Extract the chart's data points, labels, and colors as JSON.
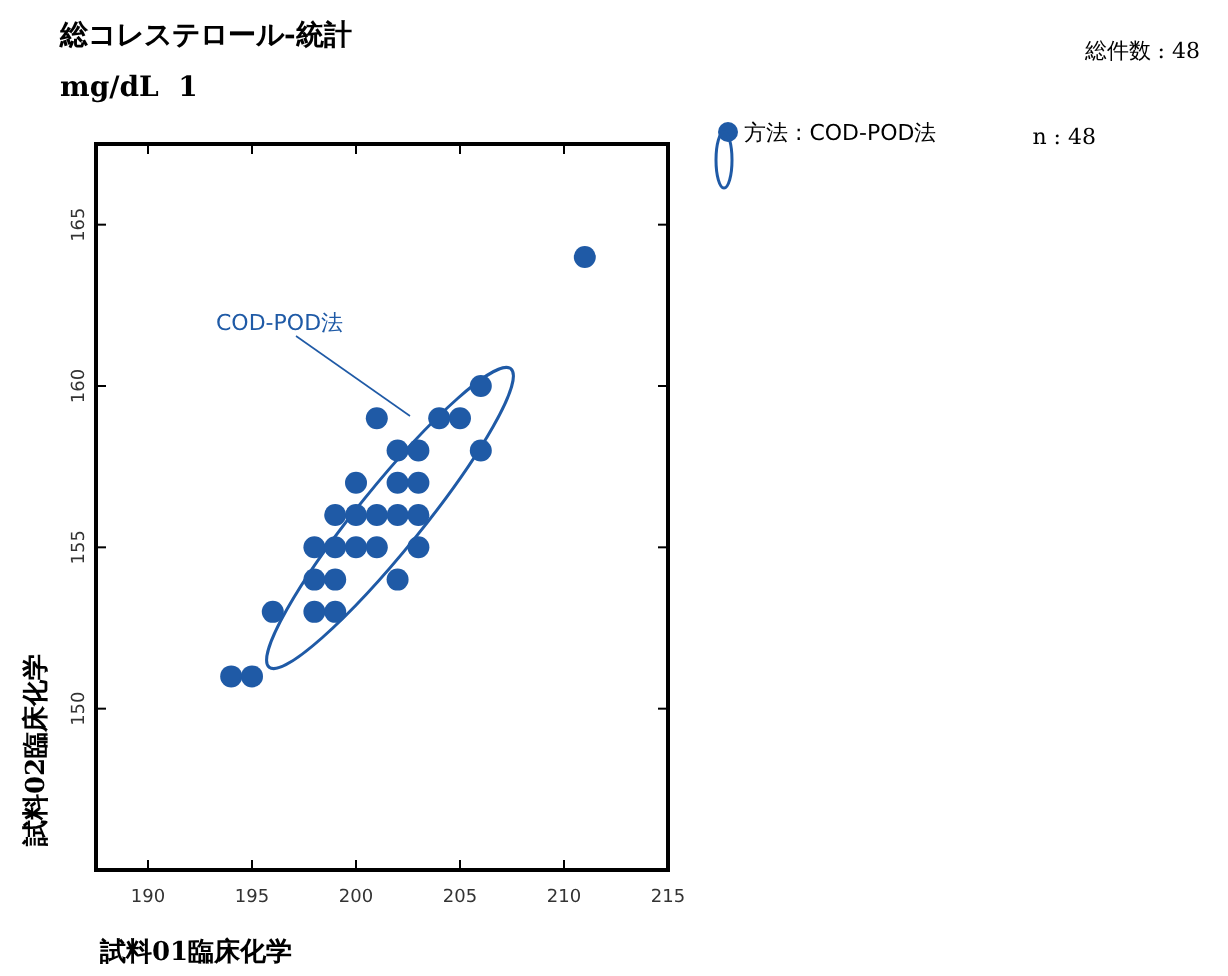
{
  "chart_data": {
    "type": "scatter",
    "title": "総コレステロール-統計",
    "subtitle": "mg/dL  1",
    "xlabel": "試料01臨床化学",
    "ylabel": "試料02臨床化学",
    "annotations": [
      "総件数 : 48",
      "n : 48",
      "COD-POD法"
    ],
    "xlim": [
      187.5,
      215
    ],
    "xticks": [
      190,
      195,
      200,
      205,
      210,
      215
    ],
    "ylim": [
      145,
      167.5
    ],
    "yticks": [
      150,
      155,
      160,
      165
    ],
    "grid": false,
    "legend": "top right",
    "marker": "circle",
    "series": [
      {
        "name": "方法 : COD-POD法",
        "color": "#1f5aa6",
        "x": [
          194,
          195,
          196,
          198,
          199,
          198,
          199,
          202,
          198,
          199,
          200,
          201,
          203,
          199,
          200,
          201,
          202,
          203,
          200,
          202,
          203,
          202,
          203,
          206,
          201,
          204,
          205,
          206,
          211
        ],
        "values": [
          151,
          151,
          153,
          153,
          153,
          154,
          154,
          154,
          155,
          155,
          155,
          155,
          155,
          156,
          156,
          156,
          156,
          156,
          157,
          157,
          157,
          158,
          158,
          158,
          159,
          159,
          159,
          160,
          164
        ]
      }
    ]
  }
}
